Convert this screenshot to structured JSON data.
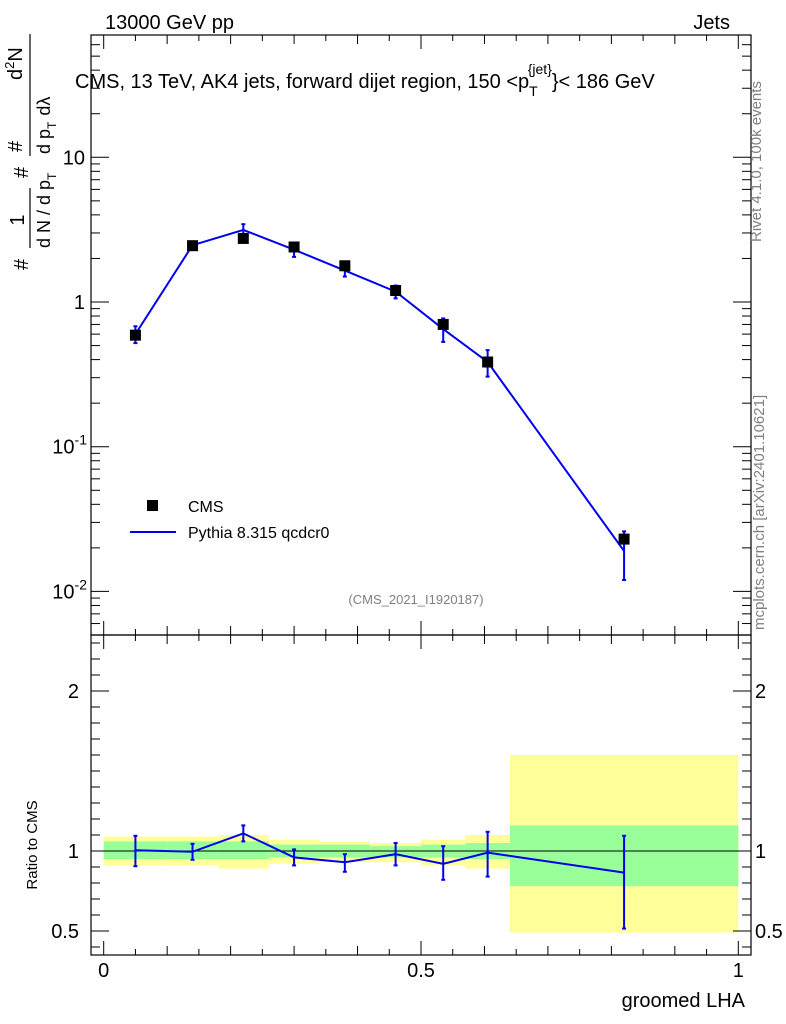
{
  "header": {
    "energy_label": "13000 GeV pp",
    "category_label": "Jets"
  },
  "side_labels": {
    "rivet": "Rivet 4.1.0,  100k events",
    "mcplots": "mcplots.cern.ch [arXiv:2401.10621]"
  },
  "analysis_id": "(CMS_2021_I1920187)",
  "chart_data": [
    {
      "type": "scatter",
      "title": "CMS, 13 TeV, AK4 jets, forward dijet region, 150 <p",
      "title_sup": "{jet}",
      "title_sub": "T",
      "title_end": "}< 186 GeV",
      "ylabel": "1/(dN/dp_T) d²N/(dp_T dλ)",
      "ylabel_parts": {
        "num_one": "1",
        "den": "d N / d p",
        "num2": "d",
        "sup2": "2",
        "N": "N",
        "den2": "d p",
        "lambda": "dλ",
        "hash": "#",
        "T": "T"
      },
      "yscale": "log",
      "ylim": [
        0.005,
        70
      ],
      "xlim": [
        -0.02,
        1.02
      ],
      "ytick_labels": [
        {
          "value": 0.01,
          "base": "10",
          "exp": "-2"
        },
        {
          "value": 0.1,
          "base": "10",
          "exp": "-1"
        },
        {
          "value": 1,
          "base": "1",
          "exp": ""
        },
        {
          "value": 10,
          "base": "10",
          "exp": ""
        }
      ],
      "legend": {
        "position": "lower-left",
        "entries": [
          "CMS",
          "Pythia 8.315 qcdcr0"
        ]
      },
      "series": [
        {
          "name": "CMS",
          "marker": "square",
          "color": "#000000",
          "x": [
            0.05,
            0.14,
            0.22,
            0.3,
            0.38,
            0.46,
            0.535,
            0.605,
            0.82
          ],
          "y": [
            0.59,
            2.45,
            2.75,
            2.4,
            1.78,
            1.2,
            0.7,
            0.385,
            0.023
          ]
        },
        {
          "name": "Pythia 8.315 qcdcr0",
          "marker": "line",
          "color": "#0000ee",
          "x": [
            0.05,
            0.14,
            0.22,
            0.3,
            0.38,
            0.46,
            0.535,
            0.605,
            0.82
          ],
          "y": [
            0.6,
            2.47,
            3.15,
            2.3,
            1.65,
            1.18,
            0.65,
            0.385,
            0.019
          ],
          "yerr_low": [
            0.08,
            0.1,
            0.3,
            0.25,
            0.15,
            0.12,
            0.12,
            0.08,
            0.007
          ],
          "yerr_high": [
            0.08,
            0.1,
            0.3,
            0.25,
            0.15,
            0.12,
            0.12,
            0.08,
            0.007
          ]
        }
      ]
    },
    {
      "type": "line",
      "ylabel": "Ratio to CMS",
      "xlabel": "groomed LHA",
      "ylim": [
        0.35,
        2.35
      ],
      "xlim": [
        -0.02,
        1.02
      ],
      "xtick_labels": [
        {
          "value": 0,
          "label": "0"
        },
        {
          "value": 0.5,
          "label": "0.5"
        },
        {
          "value": 1,
          "label": "1"
        }
      ],
      "ytick_labels": [
        {
          "value": 0.5,
          "label": "0.5"
        },
        {
          "value": 1,
          "label": "1"
        },
        {
          "value": 2,
          "label": "2"
        }
      ],
      "band_colors": {
        "outer": "#ffff99",
        "inner": "#99ff99"
      },
      "bands": [
        {
          "x0": 0.0,
          "x1": 0.1,
          "outer": [
            0.91,
            1.09
          ],
          "inner": [
            0.95,
            1.06
          ]
        },
        {
          "x0": 0.1,
          "x1": 0.18,
          "outer": [
            0.91,
            1.09
          ],
          "inner": [
            0.95,
            1.06
          ]
        },
        {
          "x0": 0.18,
          "x1": 0.26,
          "outer": [
            0.89,
            1.1
          ],
          "inner": [
            0.95,
            1.06
          ]
        },
        {
          "x0": 0.26,
          "x1": 0.34,
          "outer": [
            0.92,
            1.07
          ],
          "inner": [
            0.96,
            1.04
          ]
        },
        {
          "x0": 0.34,
          "x1": 0.42,
          "outer": [
            0.93,
            1.06
          ],
          "inner": [
            0.96,
            1.04
          ]
        },
        {
          "x0": 0.42,
          "x1": 0.5,
          "outer": [
            0.93,
            1.05
          ],
          "inner": [
            0.96,
            1.03
          ]
        },
        {
          "x0": 0.5,
          "x1": 0.57,
          "outer": [
            0.91,
            1.07
          ],
          "inner": [
            0.96,
            1.04
          ]
        },
        {
          "x0": 0.57,
          "x1": 0.64,
          "outer": [
            0.89,
            1.1
          ],
          "inner": [
            0.95,
            1.05
          ]
        },
        {
          "x0": 0.64,
          "x1": 1.0,
          "outer": [
            0.49,
            1.6
          ],
          "inner": [
            0.78,
            1.16
          ]
        }
      ],
      "series": [
        {
          "name": "Pythia 8.315 qcdcr0 / CMS",
          "color": "#0000ee",
          "x": [
            0.05,
            0.14,
            0.22,
            0.3,
            0.38,
            0.46,
            0.535,
            0.605,
            0.82
          ],
          "y": [
            1.005,
            0.995,
            1.11,
            0.96,
            0.93,
            0.98,
            0.92,
            0.99,
            0.865
          ],
          "yerr_low": [
            0.1,
            0.05,
            0.05,
            0.05,
            0.06,
            0.07,
            0.1,
            0.15,
            0.35
          ],
          "yerr_high": [
            0.09,
            0.05,
            0.05,
            0.05,
            0.05,
            0.07,
            0.11,
            0.13,
            0.23
          ]
        }
      ]
    }
  ]
}
